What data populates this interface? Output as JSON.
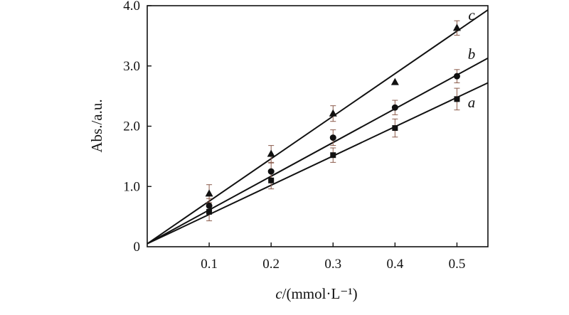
{
  "chart_data": {
    "type": "scatter",
    "xlabel": "c/(mmol·L⁻¹)",
    "xlabel_italic_part": "c",
    "xlabel_rest": "/(mmol·L⁻¹)",
    "ylabel": "Abs./a.u.",
    "xlim": [
      0,
      0.55
    ],
    "ylim": [
      0,
      4.0
    ],
    "x_ticks": [
      0.1,
      0.2,
      0.3,
      0.4,
      0.5
    ],
    "x_tick_labels": [
      "0.1",
      "0.2",
      "0.3",
      "0.4",
      "0.5"
    ],
    "y_ticks": [
      0,
      1.0,
      2.0,
      3.0,
      4.0
    ],
    "y_tick_labels": [
      "0",
      "1.0",
      "2.0",
      "3.0",
      "4.0"
    ],
    "grid": false,
    "series": [
      {
        "name": "a",
        "marker": "square",
        "x": [
          0.1,
          0.2,
          0.3,
          0.4,
          0.5
        ],
        "y": [
          0.58,
          1.1,
          1.52,
          1.97,
          2.45
        ],
        "error": [
          0.15,
          0.14,
          0.12,
          0.15,
          0.18
        ],
        "fit": {
          "x": [
            0,
            0.55
          ],
          "y": [
            0.05,
            2.72
          ]
        }
      },
      {
        "name": "b",
        "marker": "circle",
        "x": [
          0.1,
          0.2,
          0.3,
          0.4,
          0.5
        ],
        "y": [
          0.68,
          1.25,
          1.81,
          2.31,
          2.83
        ],
        "error": [
          0.12,
          0.14,
          0.13,
          0.12,
          0.11
        ],
        "fit": {
          "x": [
            0,
            0.55
          ],
          "y": [
            0.05,
            3.13
          ]
        }
      },
      {
        "name": "c",
        "marker": "triangle",
        "x": [
          0.1,
          0.2,
          0.3,
          0.4,
          0.5
        ],
        "y": [
          0.88,
          1.54,
          2.21,
          2.73,
          3.63
        ],
        "error": [
          0.15,
          0.14,
          0.13,
          0.0,
          0.12
        ],
        "fit": {
          "x": [
            0,
            0.55
          ],
          "y": [
            0.05,
            3.93
          ]
        }
      }
    ]
  }
}
